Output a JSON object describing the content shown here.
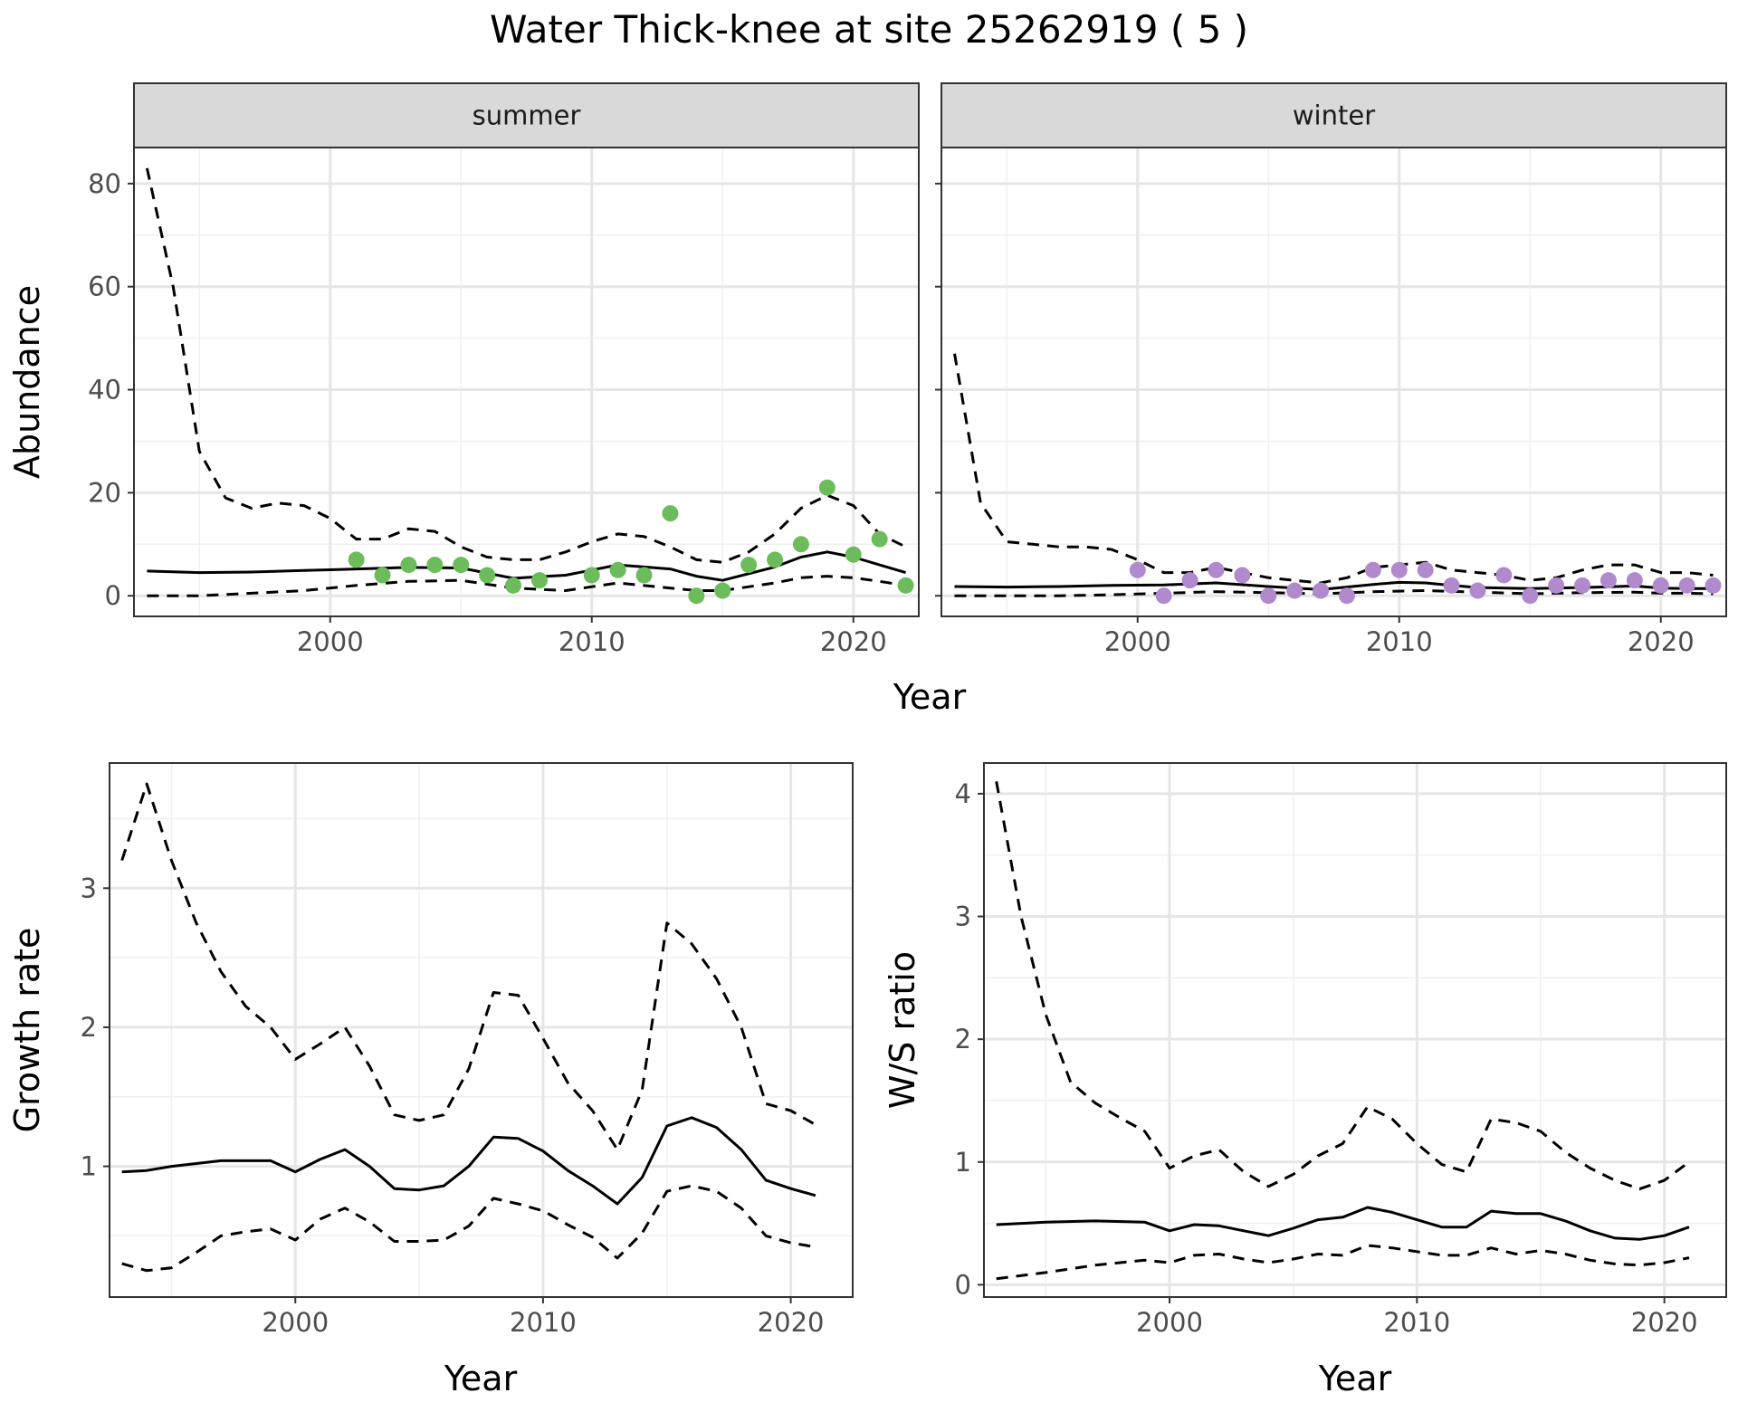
{
  "title": "Water Thick-knee at site 25262919 ( 5 )",
  "chart_data": [
    {
      "type": "line",
      "facet": "summer",
      "xlabel": "Year",
      "ylabel": "Abundance",
      "xlim": [
        1992.5,
        2022.5
      ],
      "ylim": [
        -4,
        87
      ],
      "xticks": [
        "2000",
        "2010",
        "2020"
      ],
      "yticks": [
        "0",
        "20",
        "40",
        "60",
        "80"
      ],
      "grid": true,
      "estimate": {
        "x": [
          1993,
          1995,
          1997,
          1999,
          2001,
          2003,
          2005,
          2007,
          2009,
          2011,
          2013,
          2014,
          2015,
          2017,
          2018,
          2019,
          2020,
          2021,
          2022
        ],
        "y": [
          4.8,
          4.5,
          4.6,
          4.9,
          5.2,
          5.5,
          5.4,
          3.4,
          4.0,
          6.0,
          5.2,
          3.8,
          3.0,
          5.6,
          7.5,
          8.5,
          7.5,
          6.0,
          4.5
        ]
      },
      "upper": {
        "x": [
          1993,
          1994,
          1995,
          1996,
          1997,
          1998,
          1999,
          2000,
          2001,
          2002,
          2003,
          2004,
          2005,
          2006,
          2007,
          2008,
          2009,
          2010,
          2011,
          2012,
          2013,
          2014,
          2015,
          2016,
          2017,
          2018,
          2019,
          2020,
          2021,
          2022
        ],
        "y": [
          83,
          60,
          28,
          19,
          17,
          18,
          17.5,
          15,
          11,
          11,
          13,
          12.5,
          9.5,
          7.5,
          7,
          7,
          8.5,
          10.5,
          12,
          11.5,
          9.5,
          7,
          6.5,
          8.5,
          12,
          17,
          19.5,
          17.5,
          12,
          9.5
        ]
      },
      "lower": {
        "x": [
          1993,
          1995,
          1997,
          1999,
          2001,
          2003,
          2005,
          2007,
          2009,
          2011,
          2013,
          2014,
          2015,
          2017,
          2018,
          2019,
          2020,
          2021,
          2022
        ],
        "y": [
          0,
          0,
          0.5,
          1,
          2,
          2.8,
          3,
          1.5,
          1,
          2.5,
          1.5,
          1,
          1,
          2.5,
          3.5,
          3.8,
          3.5,
          2.8,
          2
        ]
      },
      "points": {
        "x": [
          2001,
          2002,
          2003,
          2004,
          2005,
          2006,
          2007,
          2008,
          2010,
          2011,
          2012,
          2013,
          2014,
          2015,
          2016,
          2017,
          2018,
          2019,
          2020,
          2021,
          2022
        ],
        "y": [
          7,
          4,
          6,
          6,
          6,
          4,
          2,
          3,
          4,
          5,
          4,
          16,
          0,
          1,
          6,
          7,
          10,
          21,
          8,
          11,
          2
        ]
      },
      "point_color": "#6cbc5c"
    },
    {
      "type": "line",
      "facet": "winter",
      "xlabel": "Year",
      "ylabel": "Abundance",
      "xlim": [
        1992.5,
        2022.5
      ],
      "ylim": [
        -4,
        87
      ],
      "xticks": [
        "2000",
        "2010",
        "2020"
      ],
      "grid": true,
      "estimate": {
        "x": [
          1993,
          1995,
          1997,
          1999,
          2001,
          2003,
          2005,
          2007,
          2009,
          2010,
          2011,
          2012,
          2013,
          2015,
          2017,
          2019,
          2020,
          2021,
          2022
        ],
        "y": [
          1.8,
          1.7,
          1.8,
          2,
          2.1,
          2.5,
          1.8,
          1.2,
          2.2,
          2.6,
          2.5,
          2,
          1.6,
          1.4,
          1.6,
          1.9,
          1.5,
          1.4,
          1.4
        ]
      },
      "upper": {
        "x": [
          1993,
          1994,
          1995,
          1996,
          1997,
          1998,
          1999,
          2000,
          2001,
          2002,
          2003,
          2004,
          2005,
          2006,
          2007,
          2008,
          2009,
          2010,
          2011,
          2012,
          2013,
          2014,
          2015,
          2016,
          2017,
          2018,
          2019,
          2020,
          2021,
          2022
        ],
        "y": [
          47,
          18,
          10.5,
          10,
          9.5,
          9.5,
          9,
          7,
          4.5,
          4.5,
          5.5,
          4.5,
          3.5,
          3,
          2.5,
          3.5,
          5.5,
          6,
          6.5,
          5,
          4.5,
          4,
          3,
          3.5,
          5,
          6,
          6,
          4.5,
          4.5,
          4
        ]
      },
      "lower": {
        "x": [
          1993,
          1995,
          1997,
          1999,
          2001,
          2003,
          2005,
          2007,
          2009,
          2011,
          2013,
          2015,
          2017,
          2019,
          2020,
          2021,
          2022
        ],
        "y": [
          0,
          0,
          0,
          0.2,
          0.5,
          0.8,
          0.6,
          0.4,
          0.8,
          1,
          0.7,
          0.4,
          0.6,
          0.7,
          0.5,
          0.5,
          0.4
        ]
      },
      "points": {
        "x": [
          2000,
          2001,
          2002,
          2003,
          2004,
          2005,
          2006,
          2007,
          2008,
          2009,
          2010,
          2011,
          2012,
          2013,
          2014,
          2015,
          2016,
          2017,
          2018,
          2019,
          2020,
          2021,
          2022
        ],
        "y": [
          5,
          0,
          3,
          5,
          4,
          0,
          1,
          1,
          0,
          5,
          5,
          5,
          2,
          1,
          4,
          0,
          2,
          2,
          3,
          3,
          2,
          2,
          2
        ]
      },
      "point_color": "#b08acd"
    },
    {
      "type": "line",
      "xlabel": "Year",
      "ylabel": "Growth rate",
      "xlim": [
        1992.5,
        2022.5
      ],
      "ylim": [
        0.06,
        3.9
      ],
      "xticks": [
        "2000",
        "2010",
        "2020"
      ],
      "yticks": [
        "1",
        "2",
        "3"
      ],
      "grid": true,
      "estimate": {
        "x": [
          1993,
          1994,
          1995,
          1996,
          1997,
          1998,
          1999,
          2000,
          2001,
          2002,
          2003,
          2004,
          2005,
          2006,
          2007,
          2008,
          2009,
          2010,
          2011,
          2012,
          2013,
          2014,
          2015,
          2016,
          2017,
          2018,
          2019,
          2020,
          2021
        ],
        "y": [
          0.96,
          0.97,
          1.0,
          1.02,
          1.04,
          1.04,
          1.04,
          0.96,
          1.05,
          1.12,
          1.0,
          0.84,
          0.83,
          0.86,
          1.0,
          1.21,
          1.2,
          1.11,
          0.97,
          0.86,
          0.73,
          0.92,
          1.29,
          1.35,
          1.28,
          1.12,
          0.9,
          0.84,
          0.79
        ]
      },
      "upper": {
        "x": [
          1993,
          1994,
          1995,
          1996,
          1997,
          1998,
          1999,
          2000,
          2001,
          2002,
          2003,
          2004,
          2005,
          2006,
          2007,
          2008,
          2009,
          2010,
          2011,
          2012,
          2013,
          2014,
          2015,
          2016,
          2017,
          2018,
          2019,
          2020,
          2021
        ],
        "y": [
          3.2,
          3.75,
          3.2,
          2.75,
          2.4,
          2.15,
          2.0,
          1.77,
          1.88,
          2.0,
          1.72,
          1.37,
          1.33,
          1.37,
          1.7,
          2.25,
          2.23,
          1.92,
          1.6,
          1.4,
          1.12,
          1.55,
          2.75,
          2.6,
          2.35,
          2.0,
          1.45,
          1.4,
          1.3
        ]
      },
      "lower": {
        "x": [
          1993,
          1994,
          1995,
          1996,
          1997,
          1998,
          1999,
          2000,
          2001,
          2002,
          2003,
          2004,
          2005,
          2006,
          2007,
          2008,
          2009,
          2010,
          2011,
          2012,
          2013,
          2014,
          2015,
          2016,
          2017,
          2018,
          2019,
          2020,
          2021
        ],
        "y": [
          0.3,
          0.25,
          0.27,
          0.38,
          0.5,
          0.53,
          0.55,
          0.47,
          0.62,
          0.7,
          0.6,
          0.46,
          0.46,
          0.47,
          0.57,
          0.77,
          0.73,
          0.68,
          0.58,
          0.49,
          0.34,
          0.52,
          0.82,
          0.86,
          0.82,
          0.7,
          0.5,
          0.45,
          0.42
        ]
      }
    },
    {
      "type": "line",
      "xlabel": "Year",
      "ylabel": "W/S ratio",
      "xlim": [
        1992.5,
        2022.5
      ],
      "ylim": [
        -0.1,
        4.25
      ],
      "xticks": [
        "2000",
        "2010",
        "2020"
      ],
      "yticks": [
        "0",
        "1",
        "2",
        "3",
        "4"
      ],
      "grid": true,
      "estimate": {
        "x": [
          1993,
          1995,
          1997,
          1999,
          2000,
          2001,
          2002,
          2003,
          2004,
          2005,
          2006,
          2007,
          2008,
          2009,
          2010,
          2011,
          2012,
          2013,
          2014,
          2015,
          2016,
          2017,
          2018,
          2019,
          2020,
          2021
        ],
        "y": [
          0.49,
          0.51,
          0.52,
          0.51,
          0.44,
          0.49,
          0.48,
          0.44,
          0.4,
          0.46,
          0.53,
          0.55,
          0.63,
          0.59,
          0.53,
          0.47,
          0.47,
          0.6,
          0.58,
          0.58,
          0.52,
          0.44,
          0.38,
          0.37,
          0.4,
          0.47
        ]
      },
      "upper": {
        "x": [
          1993,
          1994,
          1995,
          1996,
          1997,
          1998,
          1999,
          2000,
          2001,
          2002,
          2003,
          2004,
          2005,
          2006,
          2007,
          2008,
          2009,
          2010,
          2011,
          2012,
          2013,
          2014,
          2015,
          2016,
          2017,
          2018,
          2019,
          2020,
          2021
        ],
        "y": [
          4.1,
          3.0,
          2.2,
          1.65,
          1.48,
          1.36,
          1.25,
          0.95,
          1.05,
          1.1,
          0.92,
          0.8,
          0.9,
          1.05,
          1.15,
          1.45,
          1.35,
          1.15,
          0.98,
          0.92,
          1.35,
          1.32,
          1.25,
          1.08,
          0.95,
          0.85,
          0.78,
          0.85,
          1.0
        ]
      },
      "lower": {
        "x": [
          1993,
          1995,
          1997,
          1999,
          2000,
          2001,
          2002,
          2003,
          2004,
          2005,
          2006,
          2007,
          2008,
          2009,
          2010,
          2011,
          2012,
          2013,
          2014,
          2015,
          2016,
          2017,
          2018,
          2019,
          2020,
          2021
        ],
        "y": [
          0.05,
          0.1,
          0.16,
          0.2,
          0.18,
          0.24,
          0.25,
          0.21,
          0.18,
          0.21,
          0.25,
          0.24,
          0.32,
          0.3,
          0.27,
          0.24,
          0.24,
          0.3,
          0.25,
          0.28,
          0.25,
          0.2,
          0.17,
          0.16,
          0.18,
          0.22
        ]
      }
    }
  ]
}
